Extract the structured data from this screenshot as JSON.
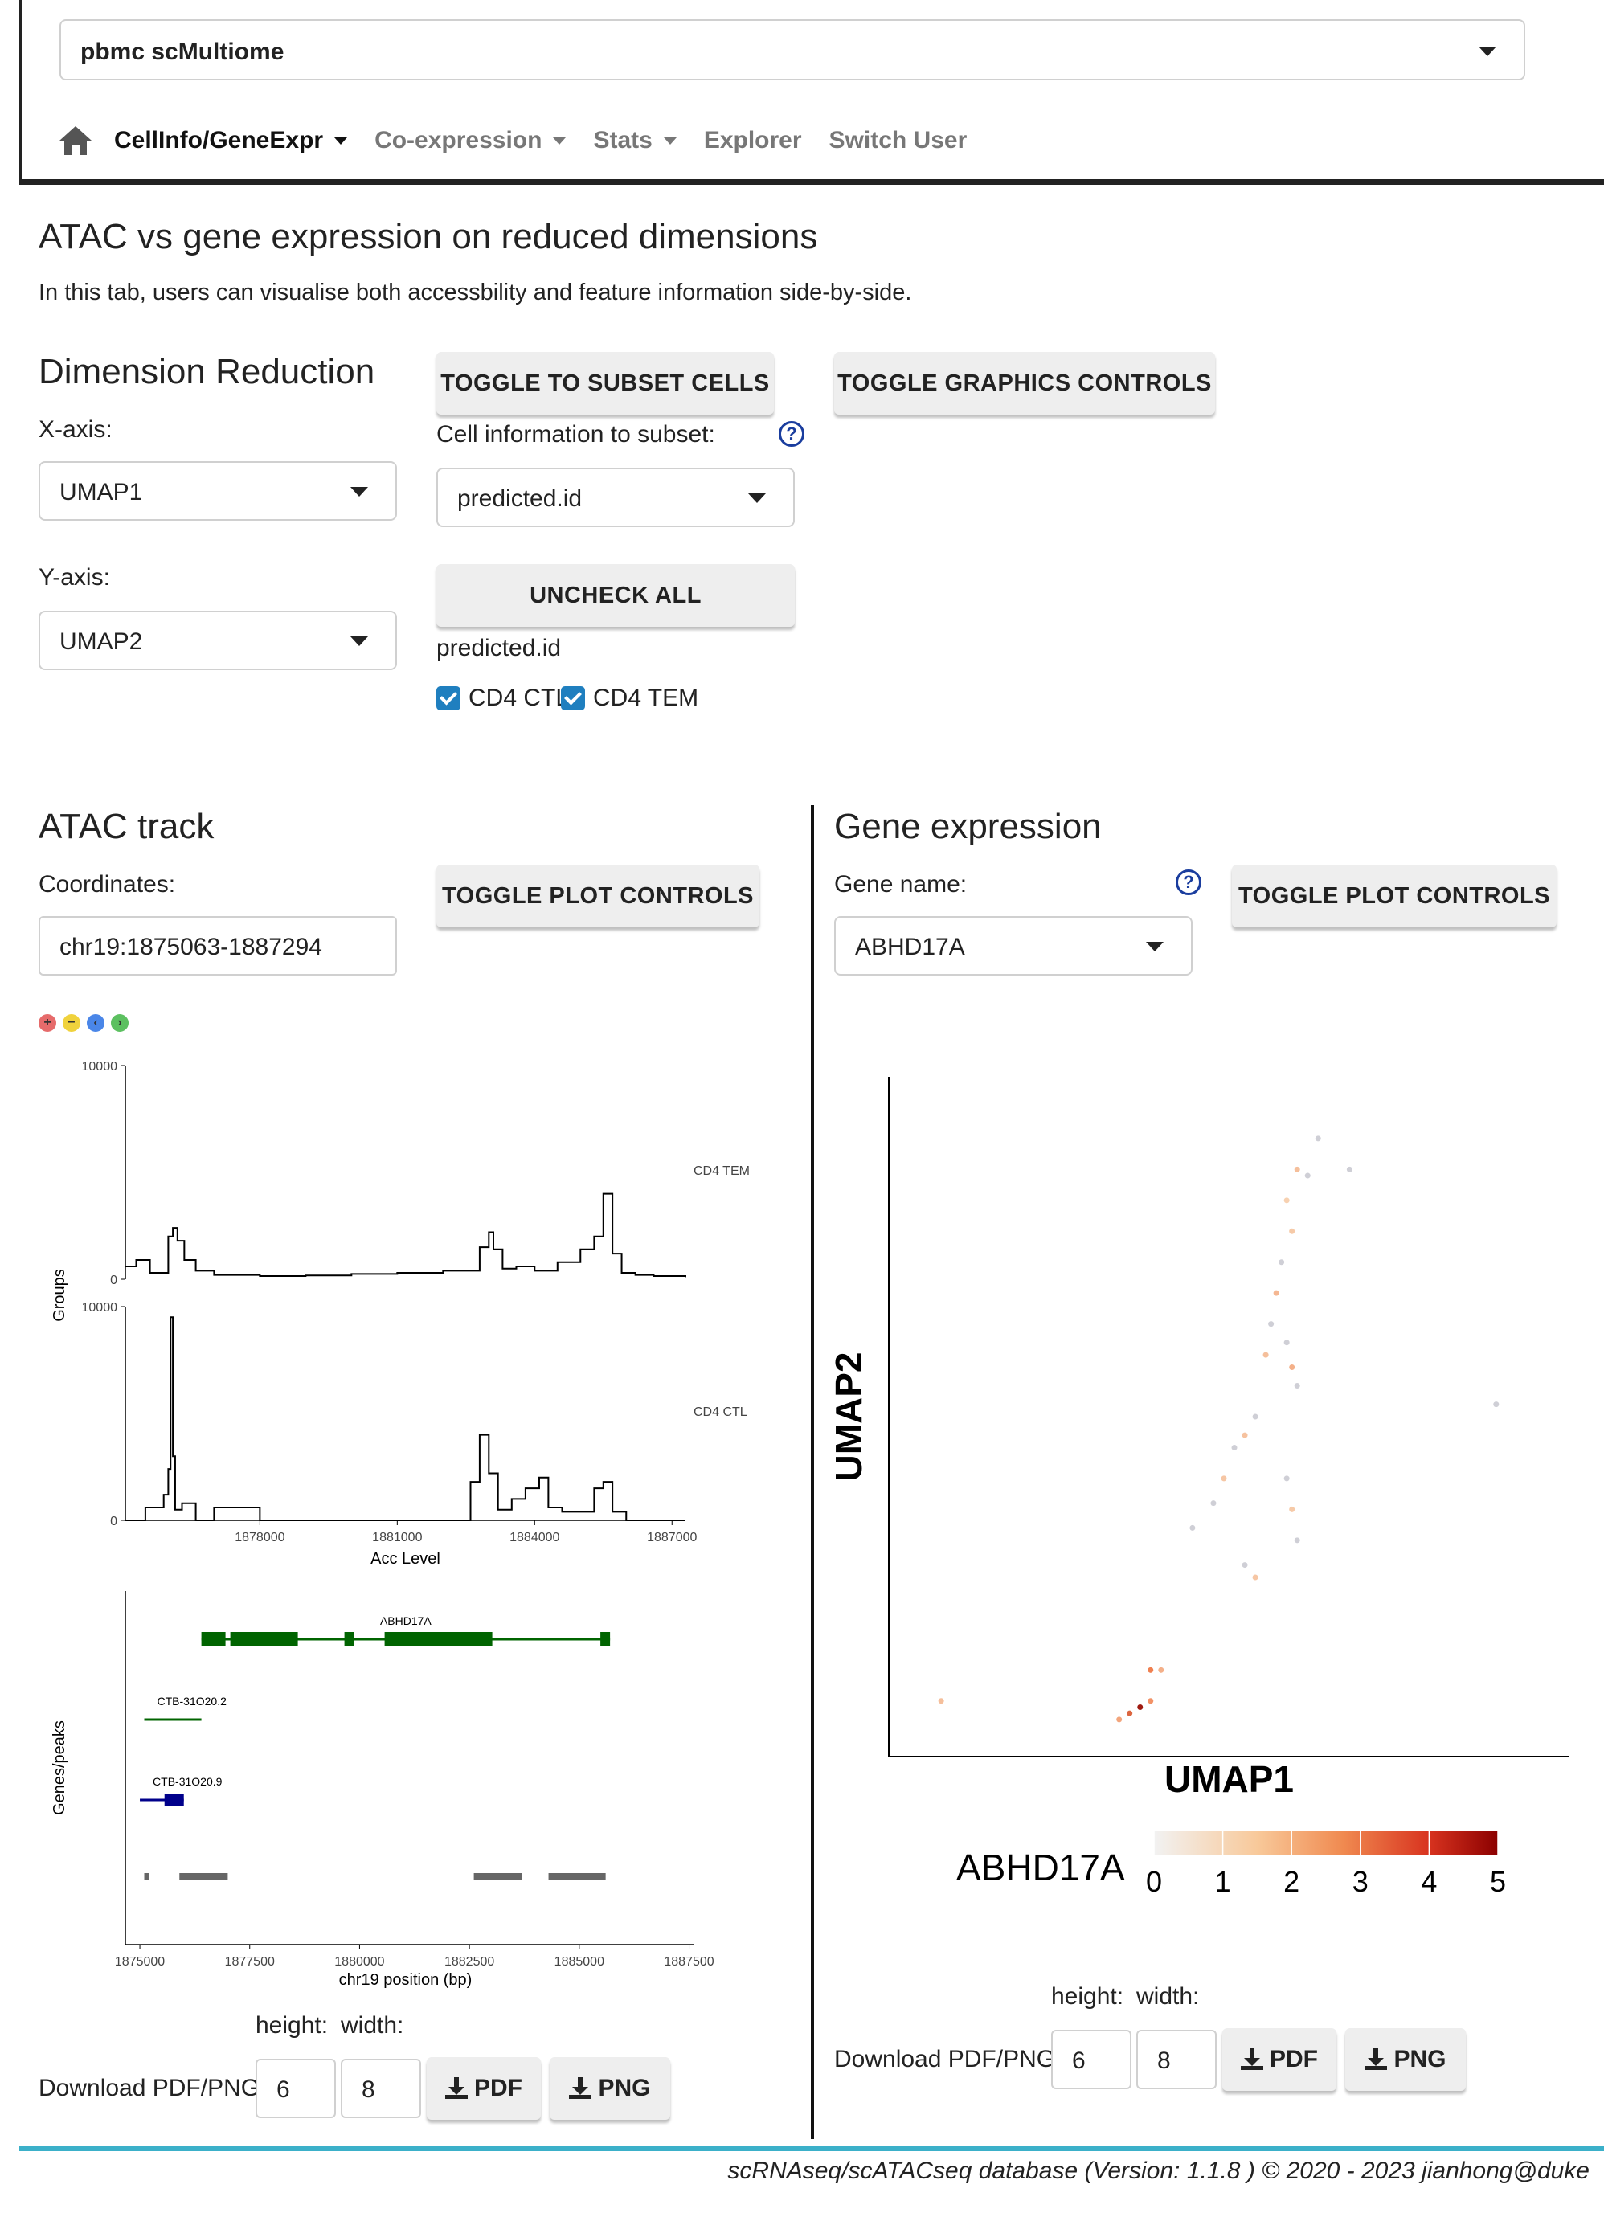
{
  "dataset": {
    "selected": "pbmc scMultiome"
  },
  "nav": {
    "items": [
      {
        "label": "CellInfo/GeneExpr",
        "dropdown": true,
        "active": true
      },
      {
        "label": "Co-expression",
        "dropdown": true
      },
      {
        "label": "Stats",
        "dropdown": true
      },
      {
        "label": "Explorer",
        "dropdown": false
      },
      {
        "label": "Switch User",
        "dropdown": false
      }
    ]
  },
  "page": {
    "title": "ATAC vs gene expression on reduced dimensions",
    "description": "In this tab, users can visualise both accessbility and feature information side-by-side."
  },
  "dimred": {
    "heading": "Dimension Reduction",
    "xaxis_label": "X-axis:",
    "xaxis_value": "UMAP1",
    "yaxis_label": "Y-axis:",
    "yaxis_value": "UMAP2"
  },
  "subset": {
    "toggle_label": "TOGGLE TO SUBSET CELLS",
    "info_label": "Cell information to subset:",
    "info_value": "predicted.id",
    "uncheck_label": "UNCHECK ALL",
    "group_label": "predicted.id",
    "options": [
      "CD4 CTL",
      "CD4 TEM"
    ]
  },
  "graphics": {
    "toggle_label": "TOGGLE GRAPHICS CONTROLS"
  },
  "atac": {
    "heading": "ATAC track",
    "coords_label": "Coordinates:",
    "coords_value": "chr19:1875063-1887294",
    "toggle_label": "TOGGLE PLOT CONTROLS",
    "zoom_icons": [
      "zoom-in",
      "zoom-out",
      "pan-left",
      "pan-right"
    ],
    "height_label": "height:",
    "width_label": "width:",
    "download_label": "Download PDF/PNG",
    "height_value": "6",
    "width_value": "8",
    "pdf_label": "PDF",
    "png_label": "PNG"
  },
  "gene": {
    "heading": "Gene expression",
    "name_label": "Gene name:",
    "name_value": "ABHD17A",
    "toggle_label": "TOGGLE PLOT CONTROLS",
    "height_label": "height:",
    "width_label": "width:",
    "download_label": "Download PDF/PNG",
    "height_value": "6",
    "width_value": "8",
    "pdf_label": "PDF",
    "png_label": "PNG"
  },
  "chart_data": [
    {
      "type": "line",
      "panel": "ATAC coverage",
      "ylabel": "Groups",
      "xlabel": "Acc Level",
      "xlim": [
        1875063,
        1887294
      ],
      "x_ticks": [
        1878000,
        1881000,
        1884000,
        1887000
      ],
      "y_ticks_labels": [
        "10000",
        "0"
      ],
      "series": [
        {
          "name": "CD4 TEM",
          "ylim": [
            0,
            10000
          ],
          "x": [
            1875063,
            1875300,
            1875600,
            1876000,
            1876100,
            1876200,
            1876350,
            1876600,
            1877000,
            1878000,
            1879000,
            1880000,
            1881000,
            1882000,
            1882800,
            1883000,
            1883100,
            1883300,
            1883600,
            1884000,
            1884500,
            1885000,
            1885300,
            1885500,
            1885700,
            1885900,
            1886200,
            1886600,
            1887294
          ],
          "values": [
            600,
            900,
            300,
            2000,
            2400,
            1800,
            900,
            400,
            200,
            150,
            180,
            250,
            300,
            400,
            1500,
            2200,
            1400,
            500,
            600,
            400,
            800,
            1400,
            2000,
            4000,
            1200,
            300,
            200,
            150,
            100
          ]
        },
        {
          "name": "CD4 CTL",
          "ylim": [
            0,
            10000
          ],
          "x": [
            1875063,
            1875500,
            1875900,
            1876000,
            1876050,
            1876100,
            1876150,
            1876300,
            1876600,
            1877000,
            1878000,
            1879000,
            1880000,
            1882000,
            1882600,
            1882800,
            1883000,
            1883200,
            1883500,
            1883800,
            1884100,
            1884300,
            1884600,
            1885300,
            1885500,
            1885700,
            1886000,
            1887294
          ],
          "values": [
            0,
            600,
            1200,
            2400,
            9500,
            3000,
            500,
            800,
            0,
            600,
            0,
            0,
            0,
            0,
            1800,
            4000,
            2200,
            500,
            1000,
            1500,
            2000,
            600,
            400,
            1500,
            1800,
            400,
            0,
            0
          ]
        }
      ]
    },
    {
      "type": "other",
      "panel": "Genes/peaks",
      "ylabel": "Genes/peaks",
      "xlabel": "chr19 position (bp)",
      "x_ticks": [
        1875000,
        1877500,
        1880000,
        1882500,
        1885000,
        1887500
      ],
      "genes": [
        {
          "name": "ABHD17A",
          "start": 1876400,
          "end": 1885700,
          "strand": "-"
        },
        {
          "name": "CTB-31O20.2",
          "start": 1875100,
          "end": 1876400,
          "strand": "-"
        },
        {
          "name": "CTB-31O20.9",
          "start": 1875000,
          "end": 1876000,
          "strand": "+"
        }
      ],
      "peaks": [
        [
          1875100,
          1875200
        ],
        [
          1875900,
          1877000
        ],
        [
          1882600,
          1883700
        ],
        [
          1884300,
          1885600
        ]
      ]
    },
    {
      "type": "scatter",
      "panel": "Gene expression UMAP",
      "xlabel": "UMAP1",
      "ylabel": "UMAP2",
      "legend_title": "ABHD17A",
      "legend_ticks": [
        "0",
        "1",
        "2",
        "3",
        "4",
        "5"
      ],
      "color_low": "#f2f2f2",
      "color_high": "#8b0000",
      "points": [
        [
          0.6,
          9.5,
          0
        ],
        [
          0.4,
          9.0,
          0.8
        ],
        [
          0.5,
          8.9,
          0
        ],
        [
          0.9,
          9.0,
          0
        ],
        [
          0.3,
          8.5,
          0.3
        ],
        [
          0.35,
          8.0,
          0.5
        ],
        [
          0.25,
          7.5,
          0
        ],
        [
          0.2,
          7.0,
          1.0
        ],
        [
          0.15,
          6.5,
          0
        ],
        [
          0.1,
          6.0,
          0.8
        ],
        [
          0.3,
          6.2,
          0
        ],
        [
          0.35,
          5.8,
          1.2
        ],
        [
          0.4,
          5.5,
          0
        ],
        [
          0.0,
          5.0,
          0
        ],
        [
          -0.1,
          4.7,
          0.7
        ],
        [
          -0.2,
          4.5,
          0
        ],
        [
          -0.3,
          4.0,
          0.6
        ],
        [
          -0.4,
          3.6,
          0
        ],
        [
          -0.6,
          3.2,
          0
        ],
        [
          0.3,
          4.0,
          0
        ],
        [
          0.35,
          3.5,
          0.5
        ],
        [
          0.4,
          3.0,
          0
        ],
        [
          -0.1,
          2.6,
          0
        ],
        [
          0.0,
          2.4,
          0.6
        ],
        [
          2.3,
          5.2,
          0
        ],
        [
          -3.0,
          0.4,
          0.8
        ],
        [
          -1.1,
          0.3,
          4.5
        ],
        [
          -1.2,
          0.2,
          3.0
        ],
        [
          -1.0,
          0.4,
          2.0
        ],
        [
          -1.3,
          0.1,
          1.5
        ],
        [
          -1.0,
          0.9,
          2.5
        ],
        [
          -0.9,
          0.9,
          1.2
        ]
      ]
    }
  ],
  "footer": {
    "text": "scRNAseq/scATACseq database (Version: 1.1.8 ) © 2020 - 2023 jianhong@duke"
  }
}
